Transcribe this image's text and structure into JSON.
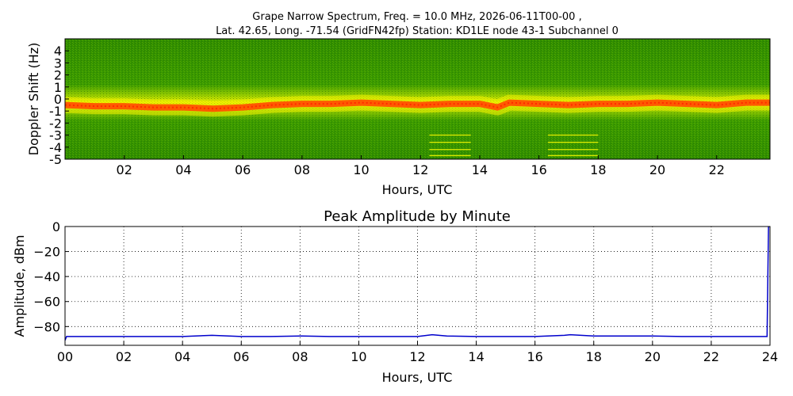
{
  "chart_data": [
    {
      "type": "heatmap",
      "title_line1": "Grape Narrow Spectrum, Freq. = 10.0 MHz, 2026-06-11T00-00 ,",
      "title_line2": "Lat.  42.65, Long. -71.54 (GridFN42fp) Station: KD1LE node 43-1 Subchannel 0",
      "xlabel": "Hours, UTC",
      "ylabel": "Doppler Shift (Hz)",
      "xlim": [
        0,
        23.8
      ],
      "ylim": [
        -5,
        5
      ],
      "xticks": [
        2,
        4,
        6,
        8,
        10,
        12,
        14,
        16,
        18,
        20,
        22
      ],
      "xtick_labels": [
        "02",
        "04",
        "06",
        "08",
        "10",
        "12",
        "14",
        "16",
        "18",
        "20",
        "22"
      ],
      "yticks": [
        4,
        3,
        2,
        1,
        0,
        -1,
        -2,
        -3,
        -4,
        -5
      ],
      "ytick_labels": [
        "4",
        "3",
        "2",
        "1",
        "0",
        "-1",
        "-2",
        "-3",
        "-4",
        "-5"
      ],
      "colors": {
        "background": "#2e8b00",
        "mid": "#9acd00",
        "near": "#f0f000",
        "peak": "#ff5a00"
      },
      "carrier_trace": {
        "x": [
          0,
          1,
          2,
          3,
          4,
          5,
          6,
          7,
          8,
          9,
          10,
          11,
          12,
          13,
          14,
          14.6,
          15,
          16,
          17,
          18,
          19,
          20,
          21,
          22,
          23,
          23.8
        ],
        "y": [
          -0.5,
          -0.6,
          -0.6,
          -0.7,
          -0.7,
          -0.8,
          -0.7,
          -0.5,
          -0.4,
          -0.4,
          -0.3,
          -0.4,
          -0.5,
          -0.4,
          -0.4,
          -0.7,
          -0.3,
          -0.4,
          -0.5,
          -0.4,
          -0.4,
          -0.3,
          -0.4,
          -0.5,
          -0.3,
          -0.3
        ]
      },
      "interference_bands": [
        {
          "x_start": 12.3,
          "x_end": 13.7,
          "y_values": [
            -3,
            -3.6,
            -4.2,
            -4.7
          ]
        },
        {
          "x_start": 16.3,
          "x_end": 18.0,
          "y_values": [
            -3,
            -3.6,
            -4.2,
            -4.7
          ]
        }
      ]
    },
    {
      "type": "line",
      "title": "Peak Amplitude by Minute",
      "xlabel": "Hours, UTC",
      "ylabel": "Amplitude, dBm",
      "xlim": [
        0,
        24
      ],
      "ylim": [
        -95,
        0
      ],
      "xticks": [
        0,
        2,
        4,
        6,
        8,
        10,
        12,
        14,
        16,
        18,
        20,
        22,
        24
      ],
      "xtick_labels": [
        "00",
        "02",
        "04",
        "06",
        "08",
        "10",
        "12",
        "14",
        "16",
        "18",
        "20",
        "22",
        "24"
      ],
      "yticks": [
        0,
        -20,
        -40,
        -60,
        -80
      ],
      "ytick_labels": [
        "0",
        "−20",
        "−40",
        "−60",
        "−80"
      ],
      "grid": true,
      "line_color": "#0000cc",
      "series": [
        {
          "x": [
            0,
            0.05,
            1,
            2,
            3,
            4,
            5,
            6,
            7,
            8,
            9,
            10,
            11,
            12,
            12.5,
            13,
            14,
            15,
            16,
            17,
            17.2,
            18,
            19,
            20,
            21,
            22,
            23,
            23.9,
            23.95,
            24
          ],
          "y": [
            -91,
            -88,
            -88,
            -88,
            -88,
            -88,
            -87,
            -88,
            -88,
            -87.5,
            -88,
            -88,
            -88,
            -88,
            -86.5,
            -87.5,
            -88,
            -88,
            -88,
            -87,
            -86.5,
            -87.5,
            -87.5,
            -87.5,
            -88,
            -88,
            -88,
            -88,
            0,
            0
          ]
        }
      ]
    }
  ]
}
